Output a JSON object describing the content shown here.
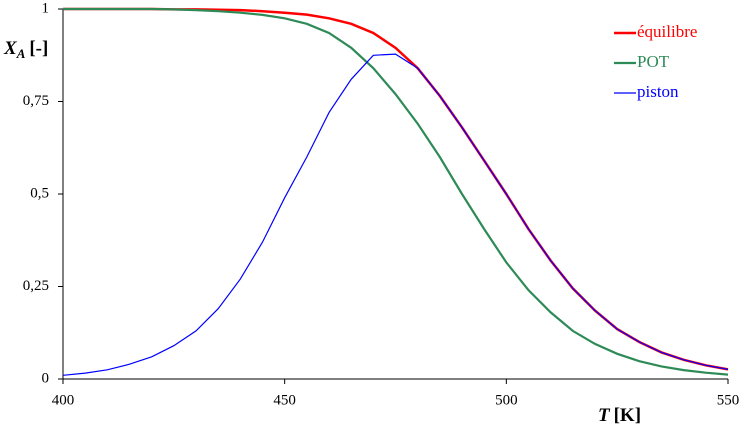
{
  "chart_data": {
    "type": "line",
    "x": [
      400,
      405,
      410,
      415,
      420,
      425,
      430,
      435,
      440,
      445,
      450,
      455,
      460,
      465,
      470,
      475,
      480,
      485,
      490,
      495,
      500,
      505,
      510,
      515,
      520,
      525,
      530,
      535,
      540,
      545,
      550
    ],
    "series": [
      {
        "name": "équilibre",
        "color": "#ff0000",
        "values": [
          1,
          1,
          1,
          1,
          1,
          0.999,
          0.999,
          0.998,
          0.997,
          0.994,
          0.99,
          0.985,
          0.975,
          0.96,
          0.935,
          0.895,
          0.84,
          0.765,
          0.68,
          0.59,
          0.5,
          0.405,
          0.32,
          0.245,
          0.185,
          0.135,
          0.1,
          0.072,
          0.052,
          0.037,
          0.026
        ]
      },
      {
        "name": "POT",
        "color": "#2e8b57",
        "values": [
          1,
          1,
          1,
          1,
          1,
          0.999,
          0.997,
          0.994,
          0.99,
          0.984,
          0.975,
          0.96,
          0.935,
          0.895,
          0.84,
          0.77,
          0.69,
          0.6,
          0.5,
          0.405,
          0.315,
          0.24,
          0.18,
          0.13,
          0.095,
          0.068,
          0.048,
          0.034,
          0.024,
          0.017,
          0.012
        ]
      },
      {
        "name": "piston",
        "color": "#0000ff",
        "values": [
          0.01,
          0.016,
          0.025,
          0.04,
          0.06,
          0.09,
          0.13,
          0.19,
          0.27,
          0.37,
          0.49,
          0.6,
          0.72,
          0.81,
          0.875,
          0.878,
          0.84,
          0.765,
          0.68,
          0.59,
          0.5,
          0.405,
          0.32,
          0.245,
          0.185,
          0.135,
          0.1,
          0.072,
          0.052,
          0.037,
          0.026
        ]
      }
    ],
    "x_label": {
      "symbol": "T",
      "unit": "[K]"
    },
    "y_label": {
      "symbol": "X",
      "subscript": "A",
      "unit": "[-]"
    },
    "xlim": [
      400,
      550
    ],
    "xticks": [
      400,
      450,
      500,
      550
    ],
    "ylim": [
      0,
      1
    ],
    "yticks": [
      0,
      {
        "value": 0.25,
        "label": "0,25"
      },
      {
        "value": 0.5,
        "label": "0,5"
      },
      {
        "value": 0.75,
        "label": "0,75"
      },
      1
    ],
    "grid": false,
    "legend": "top-right"
  }
}
